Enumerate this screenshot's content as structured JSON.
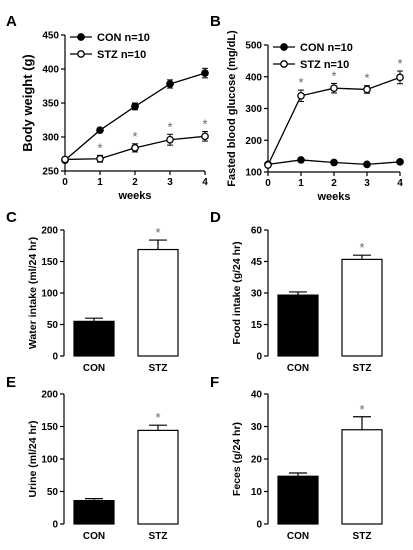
{
  "chart_data": [
    {
      "panel": "A",
      "type": "line",
      "xlabel": "weeks",
      "ylabel": "Body weight (g)",
      "x": [
        0,
        1,
        2,
        3,
        4
      ],
      "xlim": [
        0,
        4
      ],
      "ylim": [
        250,
        450
      ],
      "yticks": [
        250,
        300,
        350,
        400,
        450
      ],
      "legend_position": "top-left",
      "series": [
        {
          "name": "CON n=10",
          "marker": "filled-circle",
          "values": [
            266,
            310,
            345,
            378,
            394
          ],
          "errors": [
            3,
            3,
            5,
            6,
            7
          ]
        },
        {
          "name": "STZ n=10",
          "marker": "open-circle",
          "values": [
            267,
            268,
            284,
            296,
            301
          ],
          "errors": [
            3,
            5,
            6,
            8,
            7
          ],
          "significant": [
            false,
            true,
            true,
            true,
            true
          ]
        }
      ],
      "significance_marker": "*"
    },
    {
      "panel": "B",
      "type": "line",
      "xlabel": "weeks",
      "ylabel": "Fasted blood glucose (mg/dL)",
      "x": [
        0,
        1,
        2,
        3,
        4
      ],
      "xlim": [
        0,
        4
      ],
      "ylim": [
        100,
        500
      ],
      "yticks": [
        100,
        200,
        300,
        400,
        500
      ],
      "legend_position": "top-left",
      "series": [
        {
          "name": "CON n=10",
          "marker": "filled-circle",
          "values": [
            124,
            138,
            130,
            124,
            132
          ],
          "errors": [
            4,
            4,
            4,
            4,
            4
          ]
        },
        {
          "name": "STZ n=10",
          "marker": "open-circle",
          "values": [
            122,
            340,
            364,
            360,
            398
          ],
          "errors": [
            5,
            18,
            15,
            12,
            20
          ],
          "significant": [
            false,
            true,
            true,
            true,
            true
          ]
        }
      ],
      "significance_marker": "*"
    },
    {
      "panel": "C",
      "type": "bar",
      "ylabel": "Water intake (ml/24 hr)",
      "categories": [
        "CON",
        "STZ"
      ],
      "values": [
        55,
        169
      ],
      "errors": [
        5,
        15
      ],
      "bar_colors": [
        "#000000",
        "#ffffff"
      ],
      "ylim": [
        0,
        200
      ],
      "yticks": [
        0,
        50,
        100,
        150,
        200
      ],
      "significant": [
        false,
        true
      ],
      "significance_marker": "*"
    },
    {
      "panel": "D",
      "type": "bar",
      "ylabel": "Food intake (g/24 hr)",
      "categories": [
        "CON",
        "STZ"
      ],
      "values": [
        29,
        46
      ],
      "errors": [
        1.5,
        2
      ],
      "bar_colors": [
        "#000000",
        "#ffffff"
      ],
      "ylim": [
        0,
        60
      ],
      "yticks": [
        0,
        15,
        30,
        45,
        60
      ],
      "significant": [
        false,
        true
      ],
      "significance_marker": "*"
    },
    {
      "panel": "E",
      "type": "bar",
      "ylabel": "Urine (ml/24 hr)",
      "categories": [
        "CON",
        "STZ"
      ],
      "values": [
        36,
        144
      ],
      "errors": [
        3,
        8
      ],
      "bar_colors": [
        "#000000",
        "#ffffff"
      ],
      "ylim": [
        0,
        200
      ],
      "yticks": [
        0,
        50,
        100,
        150,
        200
      ],
      "significant": [
        false,
        true
      ],
      "significance_marker": "*"
    },
    {
      "panel": "F",
      "type": "bar",
      "ylabel": "Feces (g/24 hr)",
      "categories": [
        "CON",
        "STZ"
      ],
      "values": [
        14.7,
        29
      ],
      "errors": [
        1,
        4
      ],
      "bar_colors": [
        "#000000",
        "#ffffff"
      ],
      "ylim": [
        0,
        40
      ],
      "yticks": [
        0,
        10,
        20,
        30,
        40
      ],
      "significant": [
        false,
        true
      ],
      "significance_marker": "*"
    }
  ]
}
